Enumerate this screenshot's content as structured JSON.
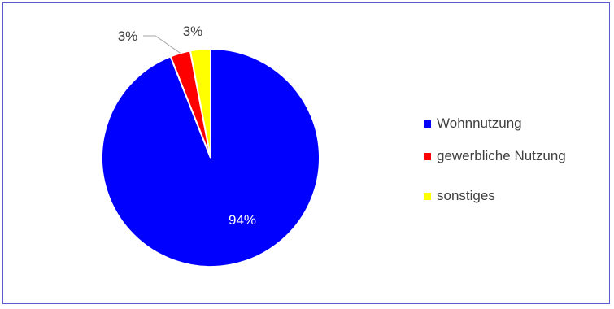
{
  "chart_data": {
    "type": "pie",
    "title": "",
    "categories": [
      "Wohnnutzung",
      "gewerbliche Nutzung",
      "sonstiges"
    ],
    "values": [
      94,
      3,
      3
    ],
    "colors": [
      "#0000ff",
      "#ff0000",
      "#ffff00"
    ],
    "data_labels": [
      "94%",
      "3%",
      "3%"
    ],
    "legend": {
      "position": "right",
      "entries": [
        "Wohnnutzung",
        "gewerbliche Nutzung",
        "sonstiges"
      ]
    },
    "start_angle": "12 o'clock, clockwise"
  }
}
